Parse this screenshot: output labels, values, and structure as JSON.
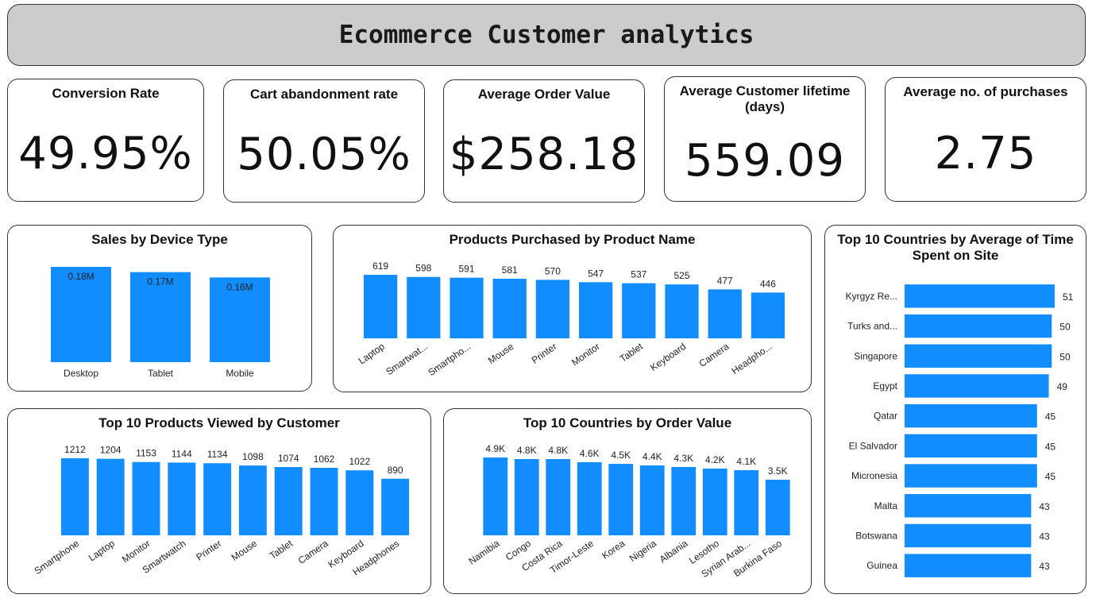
{
  "title": "Ecommerce Customer analytics",
  "kpis": [
    {
      "title": "Conversion Rate",
      "value": "49.95%"
    },
    {
      "title": "Cart abandonment rate",
      "value": "50.05%"
    },
    {
      "title": "Average Order Value",
      "value": "$258.18"
    },
    {
      "title": "Average Customer lifetime (days)",
      "value": "559.09"
    },
    {
      "title": "Average no. of purchases",
      "value": "2.75"
    }
  ],
  "colors": {
    "bar": "#118DFF",
    "header_bg": "#CCCCCC"
  },
  "chart_data": [
    {
      "id": "device",
      "type": "bar",
      "title": "Sales by Device Type",
      "categories": [
        "Desktop",
        "Tablet",
        "Mobile"
      ],
      "values": [
        0.18,
        0.17,
        0.16
      ],
      "value_labels": [
        "0.18M",
        "0.17M",
        "0.16M"
      ],
      "unit": "M"
    },
    {
      "id": "purchased",
      "type": "bar",
      "title": "Products Purchased by Product Name",
      "categories": [
        "Laptop",
        "Smartwat...",
        "Smartpho...",
        "Mouse",
        "Printer",
        "Monitor",
        "Tablet",
        "Keyboard",
        "Camera",
        "Headpho..."
      ],
      "values": [
        619,
        598,
        591,
        581,
        570,
        547,
        537,
        525,
        477,
        446
      ],
      "value_labels": [
        "619",
        "598",
        "591",
        "581",
        "570",
        "547",
        "537",
        "525",
        "477",
        "446"
      ]
    },
    {
      "id": "viewed",
      "type": "bar",
      "title": "Top 10 Products Viewed by Customer",
      "categories": [
        "Smartphone",
        "Laptop",
        "Monitor",
        "Smartwatch",
        "Printer",
        "Mouse",
        "Tablet",
        "Camera",
        "Keyboard",
        "Headphones"
      ],
      "values": [
        1212,
        1204,
        1153,
        1144,
        1134,
        1098,
        1074,
        1062,
        1022,
        890
      ],
      "value_labels": [
        "1212",
        "1204",
        "1153",
        "1144",
        "1134",
        "1098",
        "1074",
        "1062",
        "1022",
        "890"
      ]
    },
    {
      "id": "order-value",
      "type": "bar",
      "title": "Top 10 Countries by Order Value",
      "categories": [
        "Namibia",
        "Congo",
        "Costa Rica",
        "Timor-Leste",
        "Korea",
        "Nigeria",
        "Albania",
        "Lesotho",
        "Syrian Arab...",
        "Burkina Faso"
      ],
      "values": [
        4900,
        4800,
        4800,
        4600,
        4500,
        4400,
        4300,
        4200,
        4100,
        3500
      ],
      "value_labels": [
        "4.9K",
        "4.8K",
        "4.8K",
        "4.6K",
        "4.5K",
        "4.4K",
        "4.3K",
        "4.2K",
        "4.1K",
        "3.5K"
      ]
    },
    {
      "id": "time-on-site",
      "type": "bar",
      "orientation": "horizontal",
      "title": "Top 10 Countries by Average of Time Spent on Site",
      "categories": [
        "Kyrgyz Re...",
        "Turks and...",
        "Singapore",
        "Egypt",
        "Qatar",
        "El Salvador",
        "Micronesia",
        "Malta",
        "Botswana",
        "Guinea"
      ],
      "values": [
        51,
        50,
        50,
        49,
        45,
        45,
        45,
        43,
        43,
        43
      ],
      "value_labels": [
        "51",
        "50",
        "50",
        "49",
        "45",
        "45",
        "45",
        "43",
        "43",
        "43"
      ]
    }
  ]
}
